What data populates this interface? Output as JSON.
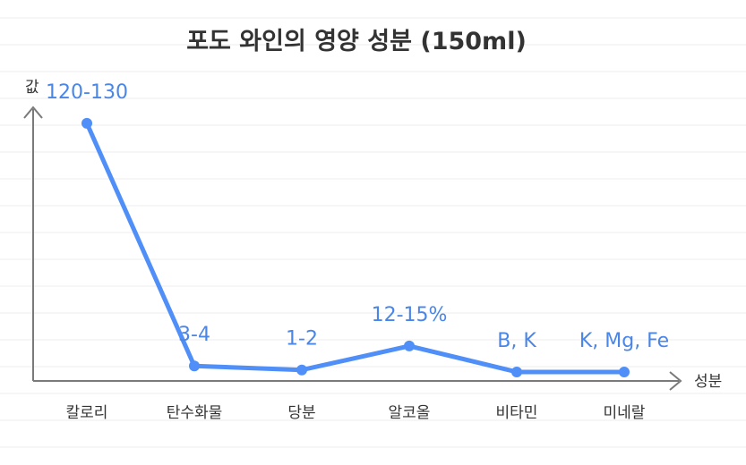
{
  "chart_data": {
    "type": "line",
    "title": "포도 와인의 영양 성분 (150ml)",
    "xlabel": "성분",
    "ylabel": "값",
    "categories": [
      "칼로리",
      "탄수화물",
      "당분",
      "알코올",
      "비타민",
      "미네랄"
    ],
    "series": [
      {
        "values": [
          125,
          3.5,
          1.5,
          13.5,
          0.5,
          0.5
        ],
        "data_labels": [
          "120-130",
          "3-4",
          "1-2",
          "12-15%",
          "B, K",
          "K, Mg, Fe"
        ]
      }
    ],
    "ylim": [
      -4,
      133
    ],
    "grid": true,
    "line_color": "#4f8ff7",
    "label_color": "#4a86e8",
    "axis_color": "#7a7a7a",
    "grid_color": "#ececec"
  }
}
